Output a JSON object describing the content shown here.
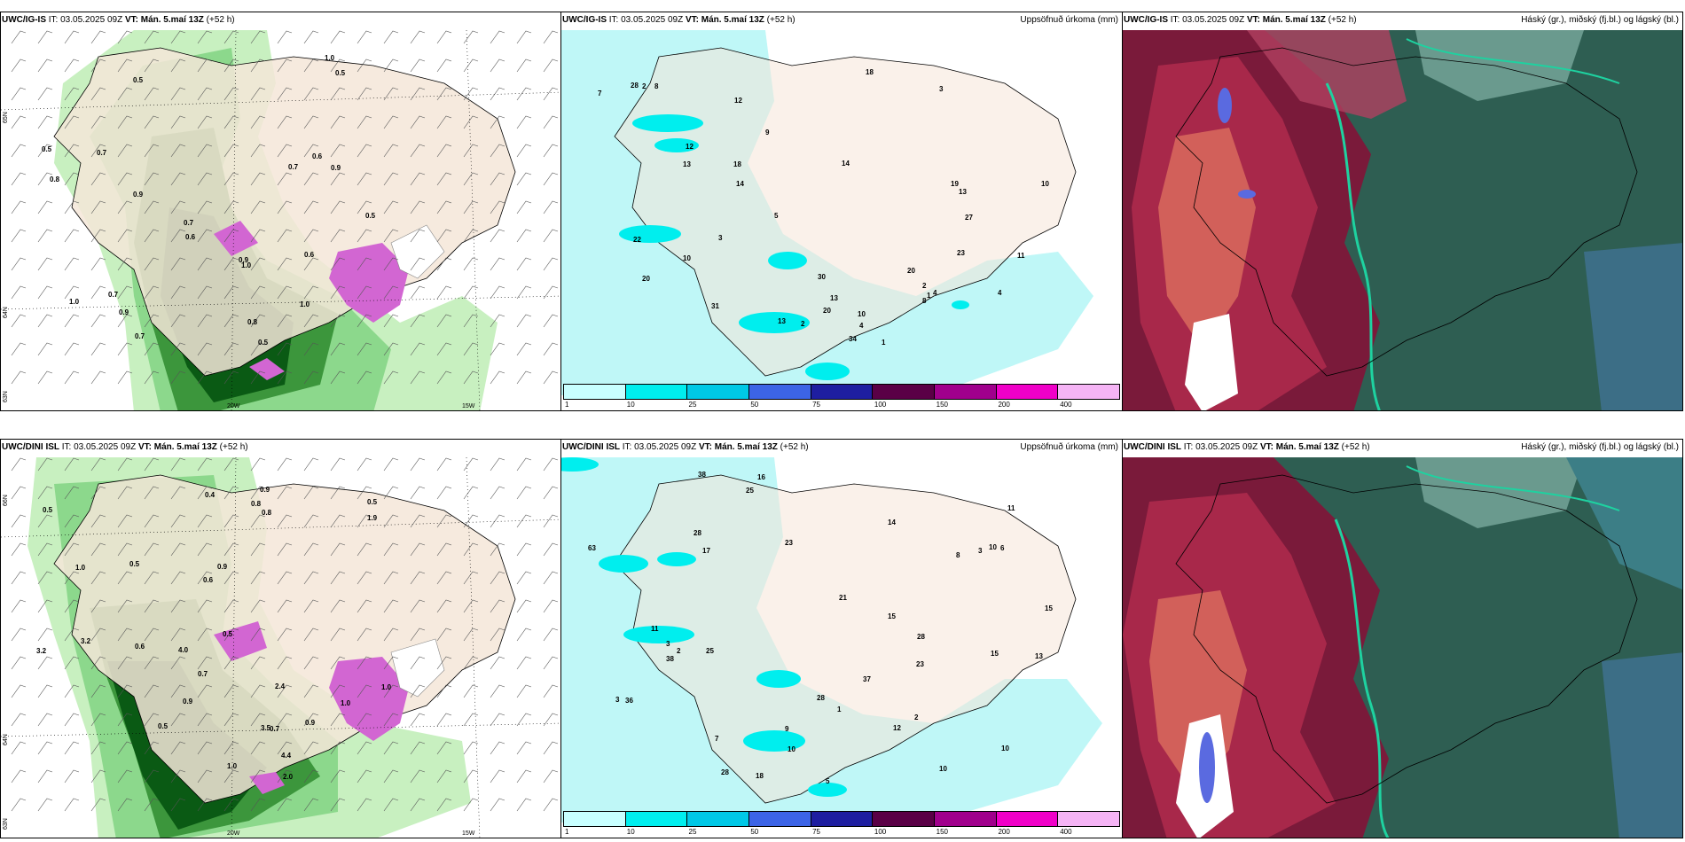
{
  "rows": [
    {
      "model": "UWC/IG-IS",
      "it_label": "IT: 03.05.2025 09Z",
      "vt_label": "VT: Mán. 5.maí 13Z",
      "lead": "(+52 h)",
      "precip_title": "Uppsöfnuð úrkoma (mm)",
      "cloud_title": "Háský (gr.), miðský (fj.bl.) og lágský (bl.)",
      "lat_labels": [
        "65N",
        "64N",
        "63N"
      ],
      "lon_labels": [
        "20W",
        "15W"
      ],
      "wind_values": [
        "0.5",
        "0.5",
        "0.7",
        "0.7",
        "0.6",
        "0.8",
        "0.5",
        "0.9",
        "0.6",
        "0.9",
        "1.0",
        "0.5",
        "0.7",
        "0.9",
        "0.7",
        "1.0",
        "0.8",
        "0.5",
        "0.6",
        "0.9",
        "1.0",
        "1.0",
        "0.7"
      ],
      "precip_values": [
        "13",
        "13",
        "14",
        "7",
        "10",
        "20",
        "20",
        "22",
        "19",
        "12",
        "10",
        "4",
        "2",
        "1",
        "3",
        "4",
        "2",
        "1",
        "11",
        "13",
        "8",
        "27",
        "13",
        "14",
        "10",
        "31",
        "18",
        "34",
        "12",
        "18",
        "28",
        "20",
        "23",
        "30",
        "8",
        "9",
        "2",
        "4",
        "5",
        "3"
      ]
    },
    {
      "model": "UWC/DINI ISL",
      "it_label": "IT: 03.05.2025 09Z",
      "vt_label": "VT: Mán. 5.maí 13Z",
      "lead": "(+52 h)",
      "precip_title": "Uppsöfnuð úrkoma (mm)",
      "cloud_title": "Háský (gr.), miðský (fj.bl.) og lágský (bl.)",
      "lat_labels": [
        "66N",
        "64N",
        "63N"
      ],
      "lon_labels": [
        "20W",
        "15W"
      ],
      "wind_values": [
        "0.5",
        "3.2",
        "0.5",
        "0.8",
        "0.9",
        "0.5",
        "1.0",
        "0.6",
        "0.9",
        "0.5",
        "1.0",
        "0.9",
        "2.0",
        "3.2",
        "1.0",
        "0.4",
        "0.8",
        "0.5",
        "4.4",
        "3.5",
        "4.0",
        "2.4",
        "1.0",
        "1.9",
        "0.9",
        "0.7",
        "0.7",
        "0.6"
      ],
      "precip_values": [
        "13",
        "12",
        "8",
        "23",
        "28",
        "28",
        "21",
        "10",
        "15",
        "15",
        "63",
        "38",
        "36",
        "15",
        "16",
        "3",
        "3",
        "2",
        "17",
        "25",
        "37",
        "14",
        "10",
        "18",
        "23",
        "28",
        "25",
        "10",
        "9",
        "10",
        "11",
        "11",
        "7",
        "38",
        "28",
        "6",
        "2",
        "5",
        "3",
        "1"
      ]
    }
  ],
  "colorbar": {
    "ticks": [
      "1",
      "10",
      "25",
      "50",
      "75",
      "100",
      "150",
      "200",
      "400"
    ],
    "colors": [
      "#c8ffff",
      "#00eeee",
      "#00c8e6",
      "#3c64e6",
      "#1e1ea0",
      "#5a0046",
      "#a0008c",
      "#f000c8",
      "#f5b4f5"
    ]
  },
  "palette": {
    "land": "#f5e6d8",
    "sea_precip_light": "#bff7f7",
    "wind_green_light": "#c8f0c0",
    "wind_green_mid": "#6cc06c",
    "wind_green_dark": "#0a5a14",
    "magenta": "#d266d2",
    "cloud_dark": "#2e5e52",
    "cloud_red": "#8c1c40",
    "cloud_teal": "#1ed2a0"
  }
}
